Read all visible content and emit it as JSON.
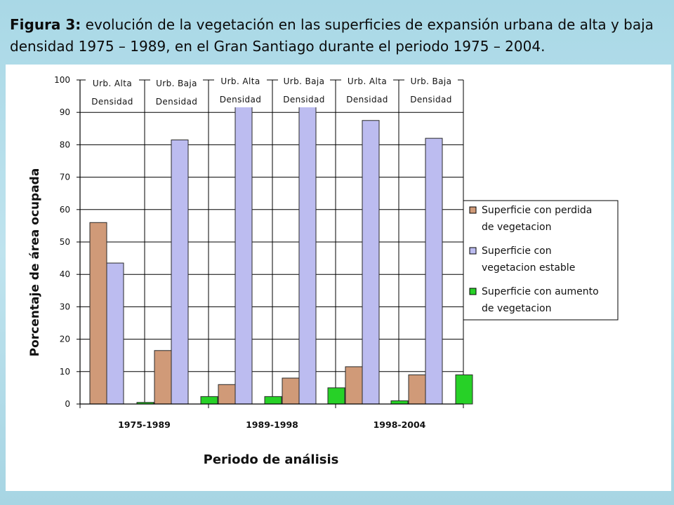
{
  "caption": {
    "figure_label": "Figura 3:",
    "text": " evolución de la vegetación en las superficies de expansión urbana de alta y baja densidad 1975 – 1989, en el Gran Santiago durante el periodo 1975 – 2004."
  },
  "colors": {
    "background": "#b3dcea",
    "loss": "#d09a78",
    "stable": "#bcbcf0",
    "gain": "#27d127",
    "bar_outline": "#2a2a2a"
  },
  "chart_data": {
    "type": "bar",
    "title": "",
    "xlabel": "Periodo de análisis",
    "ylabel": "Porcentaje de área ocupada",
    "ylim": [
      0,
      100
    ],
    "yticks": [
      0,
      10,
      20,
      30,
      40,
      50,
      60,
      70,
      80,
      90,
      100
    ],
    "grid": true,
    "legend_position": "right",
    "categories": [
      "1975-1989",
      "1989-1998",
      "1998-2004"
    ],
    "subgroup_labels": [
      [
        "Urb. Alta",
        "Densidad"
      ],
      [
        "Urb. Baja",
        "Densidad"
      ]
    ],
    "series": [
      {
        "name": "Superficie con perdida de vegetacion",
        "legend_lines": [
          "Superficie con perdida",
          "de vegetacion"
        ],
        "values": [
          [
            56,
            16.5
          ],
          [
            6,
            8
          ],
          [
            11.5,
            9
          ]
        ]
      },
      {
        "name": "Superficie con vegetacion estable",
        "legend_lines": [
          "Superficie con",
          "vegetacion estable"
        ],
        "values": [
          [
            43.5,
            81.5
          ],
          [
            92.5,
            92
          ],
          [
            87.5,
            82
          ]
        ]
      },
      {
        "name": "Superficie con aumento de vegetacion",
        "legend_lines": [
          "Superficie con aumento",
          "de vegetacion"
        ],
        "values": [
          [
            0.5,
            2.3
          ],
          [
            2.3,
            5
          ],
          [
            1,
            9
          ]
        ]
      }
    ]
  }
}
